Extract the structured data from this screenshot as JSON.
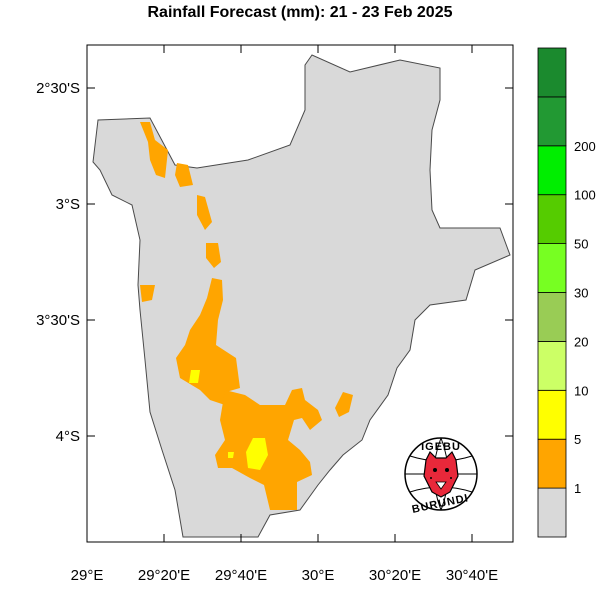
{
  "title": "Rainfall Forecast (mm): 21 - 23 Feb 2025",
  "y_axis_labels": [
    "2°30'S",
    "3°S",
    "3°30'S",
    "4°S"
  ],
  "x_axis_labels": [
    "29°E",
    "29°20'E",
    "29°40'E",
    "30°E",
    "30°20'E",
    "30°40'E"
  ],
  "legend": {
    "labels": [
      "1",
      "5",
      "10",
      "20",
      "30",
      "50",
      "100",
      "200"
    ],
    "colors": [
      "#d9d9d9",
      "#ffa500",
      "#ffff00",
      "#ccff66",
      "#99cc55",
      "#77ff22",
      "#55cc00",
      "#00ee00",
      "#229933",
      "#1b8a2e"
    ]
  },
  "map_colors": {
    "land_low": "#d9d9d9",
    "rain_1_5": "#ffa500",
    "rain_5_10": "#ffff00"
  },
  "logo": {
    "top_text": "IGEBU",
    "bottom_text": "BURUNDI",
    "icon": "leopard-head-icon"
  }
}
